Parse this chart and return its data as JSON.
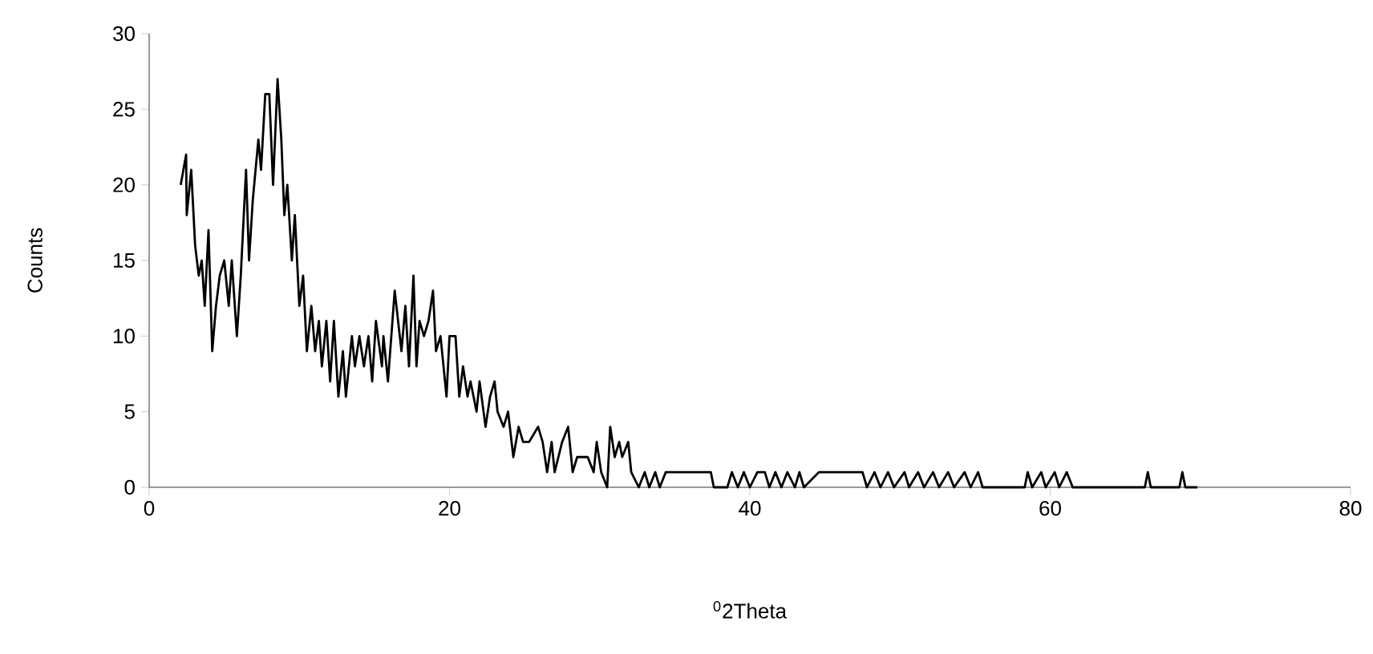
{
  "chart_data": {
    "type": "line",
    "xlabel": "$^{0}$2Theta",
    "ylabel": "Counts",
    "xlim": [
      0,
      80
    ],
    "xticks": [
      0,
      20,
      40,
      60,
      80
    ],
    "ylim": [
      0,
      30
    ],
    "yticks": [
      0,
      5,
      10,
      15,
      20,
      25,
      30
    ],
    "grid": false,
    "marker": "none",
    "line_style": "solid",
    "series": [
      {
        "color": "#000000",
        "x": [
          2.1,
          2.46,
          2.5,
          2.8,
          3.06,
          3.3,
          3.5,
          3.7,
          3.95,
          4.2,
          4.45,
          4.7,
          5.0,
          5.3,
          5.5,
          5.84,
          6.1,
          6.45,
          6.65,
          6.9,
          7.27,
          7.45,
          7.73,
          8.0,
          8.25,
          8.55,
          8.8,
          9.0,
          9.2,
          9.5,
          9.7,
          10.0,
          10.25,
          10.5,
          10.8,
          11.05,
          11.3,
          11.5,
          11.8,
          12.05,
          12.3,
          12.6,
          12.9,
          13.1,
          13.5,
          13.7,
          14.0,
          14.3,
          14.6,
          14.85,
          15.1,
          15.5,
          15.6,
          15.9,
          16.35,
          16.8,
          17.06,
          17.3,
          17.6,
          17.8,
          18.0,
          18.3,
          18.6,
          18.9,
          19.1,
          19.4,
          19.8,
          20.0,
          20.4,
          20.65,
          20.9,
          21.2,
          21.4,
          21.8,
          22.0,
          22.4,
          22.7,
          23.0,
          23.2,
          23.6,
          23.9,
          24.25,
          24.6,
          24.9,
          25.3,
          25.9,
          26.2,
          26.5,
          26.8,
          27.0,
          27.5,
          27.9,
          28.2,
          28.5,
          29.2,
          29.6,
          29.8,
          30.1,
          30.5,
          30.7,
          31.0,
          31.3,
          31.5,
          31.9,
          32.1,
          32.6,
          33.0,
          33.3,
          33.7,
          34.0,
          34.4,
          36.0,
          37.4,
          37.6,
          38.5,
          38.8,
          39.2,
          39.6,
          40.0,
          40.5,
          41.0,
          41.3,
          41.7,
          42.1,
          42.5,
          43.0,
          43.3,
          43.6,
          44.6,
          45.0,
          47.5,
          47.8,
          48.3,
          48.7,
          49.2,
          49.6,
          50.3,
          50.6,
          51.2,
          51.6,
          52.2,
          52.6,
          53.2,
          53.6,
          54.3,
          54.7,
          55.2,
          55.5,
          58.3,
          58.5,
          58.8,
          59.4,
          59.7,
          60.3,
          60.6,
          61.1,
          61.5,
          66.3,
          66.5,
          66.7,
          68.6,
          68.8,
          69.0,
          69.8
        ],
        "values": [
          20,
          22,
          18,
          21,
          16,
          14,
          15,
          12,
          17,
          9,
          12,
          14,
          15,
          12,
          15,
          10,
          14,
          21,
          15,
          19,
          23,
          21,
          26,
          26,
          20,
          27,
          23,
          18,
          20,
          15,
          18,
          12,
          14,
          9,
          12,
          9,
          11,
          8,
          11,
          7,
          11,
          6,
          9,
          6,
          10,
          8,
          10,
          8,
          10,
          7,
          11,
          8,
          10,
          7,
          13,
          9,
          12,
          8,
          14,
          8,
          11,
          10,
          11,
          13,
          9,
          10,
          6,
          10,
          10,
          6,
          8,
          6,
          7,
          5,
          7,
          4,
          6,
          7,
          5,
          4,
          5,
          2,
          4,
          3,
          3,
          4,
          3,
          1,
          3,
          1,
          3,
          4,
          1,
          2,
          2,
          1,
          3,
          1,
          0,
          4,
          2,
          3,
          2,
          3,
          1,
          0,
          1,
          0,
          1,
          0,
          1,
          1,
          1,
          0,
          0,
          1,
          0,
          1,
          0,
          1,
          1,
          0,
          1,
          0,
          1,
          0,
          1,
          0,
          1,
          1,
          1,
          0,
          1,
          0,
          1,
          0,
          1,
          0,
          1,
          0,
          1,
          0,
          1,
          0,
          1,
          0,
          1,
          0,
          0,
          1,
          0,
          1,
          0,
          1,
          0,
          1,
          0,
          0,
          1,
          0,
          0,
          1,
          0,
          0
        ]
      }
    ]
  }
}
